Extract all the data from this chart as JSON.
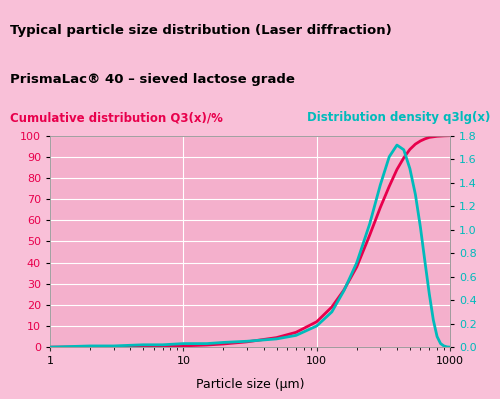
{
  "title1": "Typical particle size distribution (Laser diffraction)",
  "title2": "PrismaLac® 40 – sieved lactose grade",
  "left_label": "Cumulative distribution Q3(x)/%",
  "right_label": "Distribution density q3lg(x)",
  "xlabel": "Particle size (μm)",
  "bg_dark": "#F07AAA",
  "bg_light": "#F9C0D8",
  "plot_bg": "#F4B0CC",
  "grid_color": "#FFFFFF",
  "left_color": "#E8004C",
  "right_color": "#00BBBB",
  "title1_color": "#000000",
  "title2_color": "#000000",
  "left_label_color": "#E8004C",
  "right_label_color": "#00BBBB",
  "tick_color": "#333333",
  "cumulative_x": [
    1,
    2,
    3,
    4,
    5,
    7,
    10,
    15,
    20,
    30,
    50,
    70,
    100,
    130,
    160,
    200,
    250,
    300,
    350,
    400,
    450,
    500,
    550,
    600,
    650,
    700,
    800,
    900,
    1000
  ],
  "cumulative_y": [
    0,
    0.1,
    0.15,
    0.2,
    0.25,
    0.35,
    0.6,
    1.0,
    1.5,
    2.5,
    4.5,
    7.0,
    12.0,
    19.0,
    27.0,
    38.0,
    53.0,
    66.0,
    76.0,
    84.0,
    89.5,
    93.5,
    96.0,
    97.5,
    98.5,
    99.2,
    99.7,
    99.9,
    100.0
  ],
  "density_x": [
    1,
    2,
    3,
    5,
    7,
    10,
    15,
    20,
    30,
    50,
    70,
    100,
    130,
    160,
    200,
    250,
    300,
    350,
    400,
    450,
    500,
    550,
    600,
    650,
    700,
    750,
    800,
    850,
    900,
    950,
    1000
  ],
  "density_y": [
    0,
    0.01,
    0.01,
    0.02,
    0.02,
    0.03,
    0.03,
    0.04,
    0.05,
    0.07,
    0.1,
    0.18,
    0.3,
    0.48,
    0.72,
    1.05,
    1.38,
    1.62,
    1.72,
    1.68,
    1.52,
    1.3,
    1.02,
    0.72,
    0.45,
    0.23,
    0.09,
    0.03,
    0.01,
    0.002,
    0.0
  ],
  "ylim_left": [
    0,
    100
  ],
  "ylim_right": [
    0,
    1.8
  ],
  "xlim": [
    1,
    1000
  ],
  "yticks_left": [
    0,
    10,
    20,
    30,
    40,
    50,
    60,
    70,
    80,
    90,
    100
  ],
  "yticks_right": [
    0,
    0.2,
    0.4,
    0.6,
    0.8,
    1.0,
    1.2,
    1.4,
    1.6,
    1.8
  ],
  "xticks": [
    1,
    10,
    100,
    1000
  ],
  "xticklabels": [
    "1",
    "10",
    "100",
    "1000"
  ]
}
